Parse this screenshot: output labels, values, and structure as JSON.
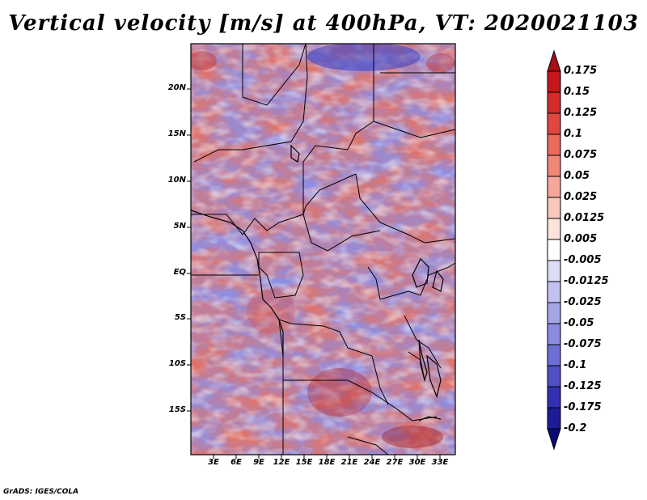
{
  "title": "Vertical velocity [m/s] at 400hPa, VT: 2020021103",
  "map": {
    "lat_labels": [
      "20N",
      "15N",
      "10N",
      "5N",
      "EQ",
      "5S",
      "10S",
      "15S"
    ],
    "lon_labels": [
      "3E",
      "6E",
      "9E",
      "12E",
      "15E",
      "18E",
      "21E",
      "24E",
      "27E",
      "30E",
      "33E"
    ],
    "variable": "Vertical velocity",
    "units": "m/s",
    "level": "400hPa",
    "valid_time": "2020021103"
  },
  "colorbar": {
    "labels": [
      "0.175",
      "0.15",
      "0.125",
      "0.1",
      "0.075",
      "0.05",
      "0.025",
      "0.0125",
      "0.005",
      "-0.005",
      "-0.0125",
      "-0.025",
      "-0.05",
      "-0.075",
      "-0.1",
      "-0.125",
      "-0.175",
      "-0.2"
    ],
    "colors": [
      "#a50f15",
      "#c4161c",
      "#d42a2a",
      "#e0473f",
      "#ea6a5e",
      "#f08878",
      "#f5a89a",
      "#f9c8bd",
      "#fce4dc",
      "#ffffff",
      "#dcdcf6",
      "#c2c2f0",
      "#a5a5e8",
      "#8a8ae0",
      "#6e6ed6",
      "#4f4fc6",
      "#3030b0",
      "#1c1c96",
      "#0b0b78"
    ]
  },
  "credit": "GrADS: IGES/COLA"
}
